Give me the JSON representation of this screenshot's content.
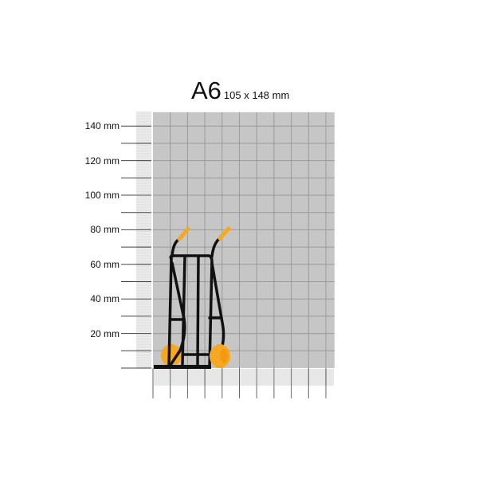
{
  "header": {
    "format": "A6",
    "dimensions": "105 x 148 mm"
  },
  "ruler": {
    "unit": "mm",
    "y_labels": [
      "20 mm",
      "40 mm",
      "60 mm",
      "80 mm",
      "100 mm",
      "120 mm",
      "140 mm"
    ],
    "width_mm": 105,
    "height_mm": 148,
    "grid_step_mm": 10
  },
  "product": {
    "icon": "hand-truck-icon"
  },
  "colors": {
    "sheet": "#c6c6c6",
    "grid": "#9a9a9a",
    "accent": "#f7a823",
    "frame": "#111111"
  }
}
